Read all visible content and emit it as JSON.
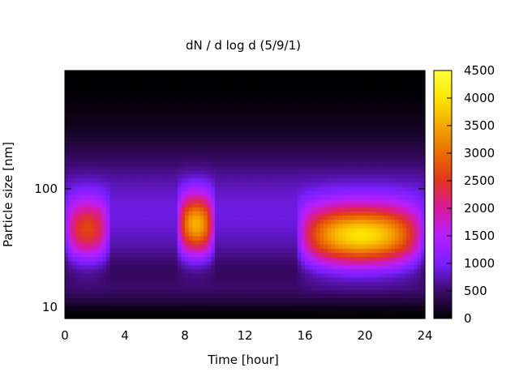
{
  "chart_data": {
    "type": "heatmap",
    "title": "dN / d log d (5/9/1)",
    "xlabel": "Time [hour]",
    "ylabel": "Particle size [nm]",
    "x_range": [
      0,
      24
    ],
    "x_ticks": [
      0,
      4,
      8,
      12,
      16,
      20,
      24
    ],
    "x_tick_labels": [
      "0",
      "4",
      "8",
      "12",
      "16",
      "20",
      "24"
    ],
    "y_scale": "log",
    "y_range": [
      8,
      1000
    ],
    "y_ticks": [
      10,
      100
    ],
    "y_tick_labels": [
      "10",
      "100"
    ],
    "colorbar": {
      "range": [
        0,
        4500
      ],
      "ticks": [
        0,
        500,
        1000,
        1500,
        2000,
        2500,
        3000,
        3500,
        4000,
        4500
      ],
      "tick_labels": [
        "0",
        "500",
        "1000",
        "1500",
        "2000",
        "2500",
        "3000",
        "3500",
        "4000",
        "4500"
      ],
      "colormap": "gnuplot pm3d (black-purple-red-orange-yellow)"
    },
    "grid": false,
    "colormap_stops": [
      "#000000",
      "#3b0a6b",
      "#7a1fff",
      "#b520ff",
      "#d8199a",
      "#e0351e",
      "#ea6d00",
      "#f4a800",
      "#fce600",
      "#ffff3c"
    ],
    "features": [
      {
        "time_range": [
          0,
          3
        ],
        "mode_size_nm": 45,
        "peak_value": 2700
      },
      {
        "time_range": [
          7.5,
          10
        ],
        "mode_size_nm": 50,
        "peak_value": 3600
      },
      {
        "time_range": [
          15.5,
          24
        ],
        "mode_size_nm": 40,
        "peak_value": 4100
      }
    ]
  }
}
